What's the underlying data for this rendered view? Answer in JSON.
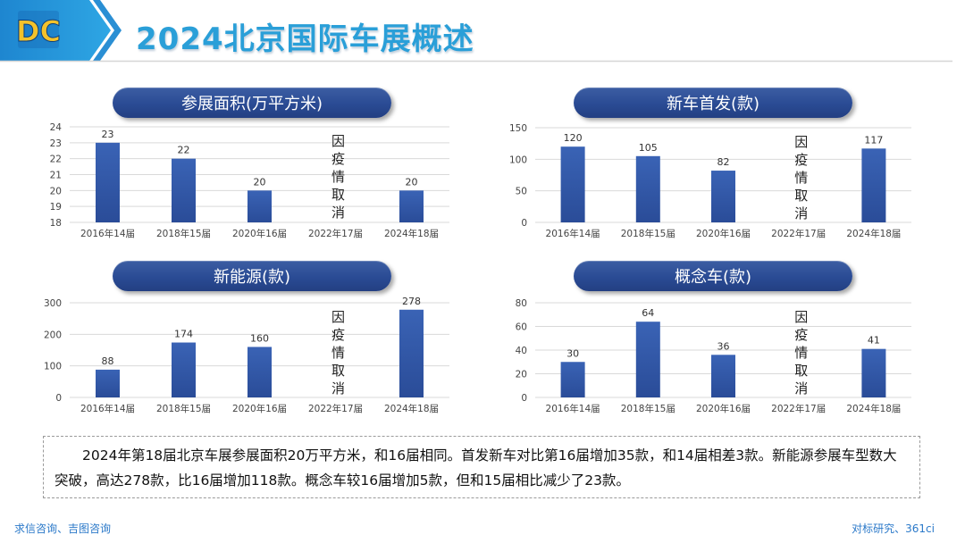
{
  "header": {
    "logo_text": "DC",
    "title": "2024北京国际车展概述"
  },
  "charts": [
    {
      "pill": "参展面积(万平方米)"
    },
    {
      "pill": "新车首发(款)"
    },
    {
      "pill": "新能源(款)"
    },
    {
      "pill": "概念车(款)"
    }
  ],
  "chart_data": [
    {
      "type": "bar",
      "title": "参展面积(万平方米)",
      "categories": [
        "2016年14届",
        "2018年15届",
        "2020年16届",
        "2022年17届",
        "2024年18届"
      ],
      "values": [
        23,
        22,
        20,
        null,
        20
      ],
      "ylim": [
        18,
        24
      ],
      "yticks": [
        18,
        19,
        20,
        21,
        22,
        23,
        24
      ],
      "annotation": "因疫情取消",
      "grid": true,
      "color": "#2f55a4"
    },
    {
      "type": "bar",
      "title": "新车首发(款)",
      "categories": [
        "2016年14届",
        "2018年15届",
        "2020年16届",
        "2022年17届",
        "2024年18届"
      ],
      "values": [
        120,
        105,
        82,
        null,
        117
      ],
      "ylim": [
        0,
        150
      ],
      "yticks": [
        0,
        50,
        100,
        150
      ],
      "annotation": "因疫情取消",
      "grid": true,
      "color": "#2f55a4"
    },
    {
      "type": "bar",
      "title": "新能源(款)",
      "categories": [
        "2016年14届",
        "2018年15届",
        "2020年16届",
        "2022年17届",
        "2024年18届"
      ],
      "values": [
        88,
        174,
        160,
        null,
        278
      ],
      "ylim": [
        0,
        300
      ],
      "yticks": [
        0,
        100,
        200,
        300
      ],
      "annotation": "因疫情取消",
      "grid": true,
      "color": "#2f55a4"
    },
    {
      "type": "bar",
      "title": "概念车(款)",
      "categories": [
        "2016年14届",
        "2018年15届",
        "2020年16届",
        "2022年17届",
        "2024年18届"
      ],
      "values": [
        30,
        64,
        36,
        null,
        41
      ],
      "ylim": [
        0,
        80
      ],
      "yticks": [
        0,
        20,
        40,
        60,
        80
      ],
      "annotation": "因疫情取消",
      "grid": true,
      "color": "#2f55a4"
    }
  ],
  "summary": "2024年第18届北京车展参展面积20万平方米，和16届相同。首发新车对比第16届增加35款，和14届相差3款。新能源参展车型数大突破，高达278款，比16届增加118款。概念车较16届增加5款，但和15届相比减少了23款。",
  "footer": {
    "left": "求信咨询、吉图咨询",
    "right": "对标研究、361ci"
  }
}
